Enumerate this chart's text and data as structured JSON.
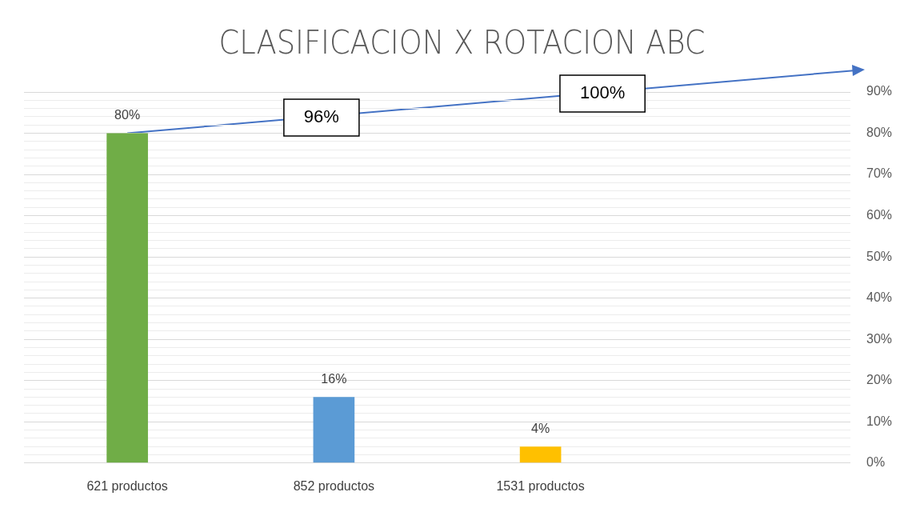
{
  "chart_data": {
    "type": "bar",
    "title": "CLASIFICACION X ROTACION ABC",
    "categories": [
      "621 productos",
      "852 productos",
      "1531 productos",
      null
    ],
    "values": [
      80,
      16,
      4,
      null
    ],
    "colors": [
      "#70ad47",
      "#5b9bd5",
      "#ffc000",
      null
    ],
    "value_labels": [
      "80%",
      "16%",
      "4%",
      null
    ],
    "ylim": [
      0,
      90
    ],
    "yticks": [
      {
        "value": 0,
        "label": "0%"
      },
      {
        "value": 2,
        "label": null
      },
      {
        "value": 4,
        "label": null
      },
      {
        "value": 6,
        "label": null
      },
      {
        "value": 8,
        "label": null
      },
      {
        "value": 10,
        "label": "10%"
      },
      {
        "value": 12,
        "label": null
      },
      {
        "value": 14,
        "label": null
      },
      {
        "value": 16,
        "label": null
      },
      {
        "value": 18,
        "label": null
      },
      {
        "value": 20,
        "label": "20%"
      },
      {
        "value": 22,
        "label": null
      },
      {
        "value": 24,
        "label": null
      },
      {
        "value": 26,
        "label": null
      },
      {
        "value": 28,
        "label": null
      },
      {
        "value": 30,
        "label": "30%"
      },
      {
        "value": 32,
        "label": null
      },
      {
        "value": 34,
        "label": null
      },
      {
        "value": 36,
        "label": null
      },
      {
        "value": 38,
        "label": null
      },
      {
        "value": 40,
        "label": "40%"
      },
      {
        "value": 42,
        "label": null
      },
      {
        "value": 44,
        "label": null
      },
      {
        "value": 46,
        "label": null
      },
      {
        "value": 48,
        "label": null
      },
      {
        "value": 50,
        "label": "50%"
      },
      {
        "value": 52,
        "label": null
      },
      {
        "value": 54,
        "label": null
      },
      {
        "value": 56,
        "label": null
      },
      {
        "value": 58,
        "label": null
      },
      {
        "value": 60,
        "label": "60%"
      },
      {
        "value": 62,
        "label": null
      },
      {
        "value": 64,
        "label": null
      },
      {
        "value": 66,
        "label": null
      },
      {
        "value": 68,
        "label": null
      },
      {
        "value": 70,
        "label": "70%"
      },
      {
        "value": 72,
        "label": null
      },
      {
        "value": 74,
        "label": null
      },
      {
        "value": 76,
        "label": null
      },
      {
        "value": 78,
        "label": null
      },
      {
        "value": 80,
        "label": "80%"
      },
      {
        "value": 82,
        "label": null
      },
      {
        "value": 84,
        "label": null
      },
      {
        "value": 86,
        "label": null
      },
      {
        "value": 88,
        "label": null
      },
      {
        "value": 90,
        "label": "90%"
      }
    ],
    "grid": "y",
    "legend": false,
    "annotations": [
      "96%",
      "100%"
    ]
  }
}
